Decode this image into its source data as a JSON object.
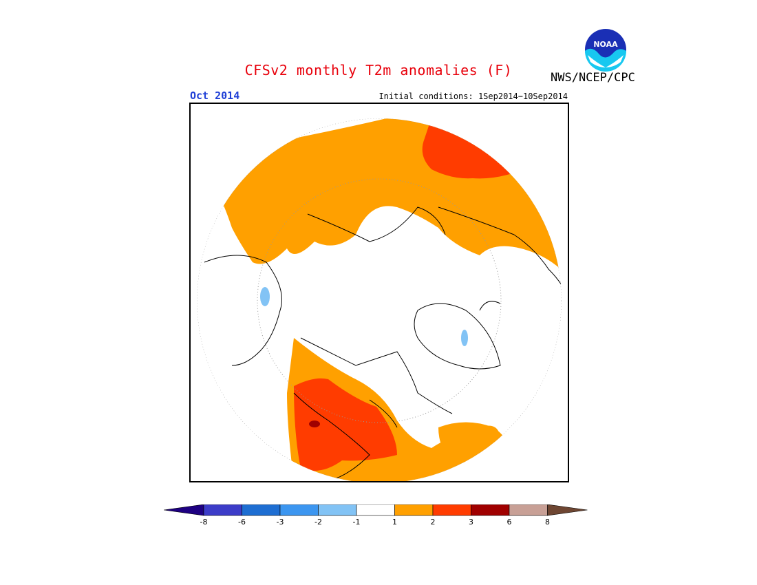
{
  "title": "CFSv2 monthly T2m anomalies (F)",
  "month": "Oct 2014",
  "initial_conditions": "Initial conditions: 1Sep2014−10Sep2014",
  "agency": "NWS/NCEP/CPC",
  "logo_text": "NOAA",
  "colors": {
    "title": "#e8000b",
    "month": "#1f3fd6",
    "land_outline": "#000000",
    "anom_p1": "#ffa000",
    "anom_p2": "#ff3c00",
    "anom_p3": "#a00000",
    "anom_m1": "#82c3f5"
  },
  "colorbar": {
    "colors": [
      "#1e0082",
      "#3c3cc8",
      "#1e6ed2",
      "#3c96f0",
      "#82c3f5",
      "#ffffff",
      "#ffa000",
      "#ff3c00",
      "#a00000",
      "#c8a096",
      "#6e4632"
    ],
    "tick_labels": [
      "-8",
      "-6",
      "-3",
      "-2",
      "-1",
      "1",
      "2",
      "3",
      "6",
      "8"
    ]
  }
}
